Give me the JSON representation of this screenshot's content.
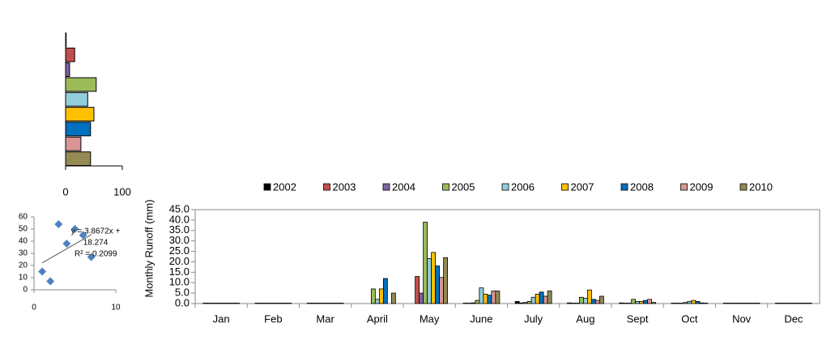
{
  "chart_data": [
    {
      "type": "barh",
      "categories": [
        null,
        null,
        null,
        null,
        null,
        null,
        null,
        null,
        null
      ],
      "values": [
        1,
        16,
        7,
        54,
        39,
        50,
        44,
        27,
        44
      ],
      "colors": [
        "#000000",
        "#c0504d",
        "#8064a2",
        "#9bbb59",
        "#92cddc",
        "#ffc000",
        "#0070c0",
        "#d99694",
        "#948a54"
      ],
      "xlim": [
        0,
        100
      ],
      "xticks": [
        0,
        100
      ]
    },
    {
      "type": "scatter",
      "x": [
        1,
        2,
        3,
        4,
        5,
        6,
        7
      ],
      "values": [
        15,
        7,
        54,
        38,
        50,
        45,
        27
      ],
      "color": "#4f81bd",
      "xlim": [
        0,
        10
      ],
      "xticks": [
        0,
        10
      ],
      "ylim": [
        0,
        60
      ],
      "yticks": [
        0,
        10,
        20,
        30,
        40,
        50,
        60
      ],
      "trendline": {
        "slope": 3.8672,
        "intercept": 18.274
      },
      "annotation": [
        "y = 3.8672x +",
        "18.274",
        "R² = 0.2099"
      ]
    },
    {
      "type": "bar",
      "y_label": "Monthly  Runoff (mm)",
      "categories": [
        "Jan",
        "Feb",
        "Mar",
        "April",
        "May",
        "June",
        "July",
        "Aug",
        "Sept",
        "Oct",
        "Nov",
        "Dec"
      ],
      "ylim": [
        0,
        45
      ],
      "yticks": [
        {
          "value": 0,
          "label": "0.0"
        },
        {
          "value": 5,
          "label": "5.0"
        },
        {
          "value": 10,
          "label": "10.0"
        },
        {
          "value": 15,
          "label": "15.0"
        },
        {
          "value": 20,
          "label": "20.0"
        },
        {
          "value": 25,
          "label": "25.0"
        },
        {
          "value": 30,
          "label": "30.0"
        },
        {
          "value": 35,
          "label": "35.0"
        },
        {
          "value": 40,
          "label": "40.0"
        },
        {
          "value": 45,
          "label": "45.0"
        }
      ],
      "legend": "top",
      "series": [
        {
          "name": "2002",
          "color": "#000000",
          "values": [
            0.2,
            0.2,
            0.2,
            0,
            0,
            0.2,
            1,
            0.3,
            0.3,
            0.2,
            0.2,
            0.2
          ]
        },
        {
          "name": "2003",
          "color": "#c0504d",
          "values": [
            0.2,
            0.2,
            0.2,
            0,
            13,
            0.2,
            0.3,
            0.2,
            0.2,
            0.2,
            0.2,
            0.2
          ]
        },
        {
          "name": "2004",
          "color": "#8064a2",
          "values": [
            0.2,
            0.2,
            0.2,
            0,
            5,
            0.3,
            0.5,
            0.2,
            0.2,
            0.2,
            0.2,
            0.2
          ]
        },
        {
          "name": "2005",
          "color": "#9bbb59",
          "values": [
            0.2,
            0.2,
            0.2,
            7,
            39,
            1.5,
            1,
            3,
            2,
            0.5,
            0.2,
            0.2
          ]
        },
        {
          "name": "2006",
          "color": "#92cddc",
          "values": [
            0.2,
            0.2,
            0.2,
            2,
            21.5,
            7.5,
            3,
            2.5,
            1,
            1,
            0.2,
            0.2
          ]
        },
        {
          "name": "2007",
          "color": "#ffc000",
          "values": [
            0.2,
            0.2,
            0.2,
            7,
            24.5,
            4.5,
            4.5,
            6.5,
            1,
            1.5,
            0.2,
            0.2
          ]
        },
        {
          "name": "2008",
          "color": "#0070c0",
          "values": [
            0.2,
            0.2,
            0.2,
            12,
            18,
            4,
            5.5,
            2,
            1.5,
            1,
            0.2,
            0.2
          ]
        },
        {
          "name": "2009",
          "color": "#d99694",
          "values": [
            0.2,
            0.2,
            0.2,
            0,
            12.5,
            6,
            3.5,
            1.5,
            2,
            0.3,
            0.2,
            0.2
          ]
        },
        {
          "name": "2010",
          "color": "#948a54",
          "values": [
            0.2,
            0.2,
            0.2,
            5,
            22,
            6,
            6,
            3.5,
            0.5,
            0.2,
            0.2,
            0.2
          ]
        }
      ]
    }
  ]
}
